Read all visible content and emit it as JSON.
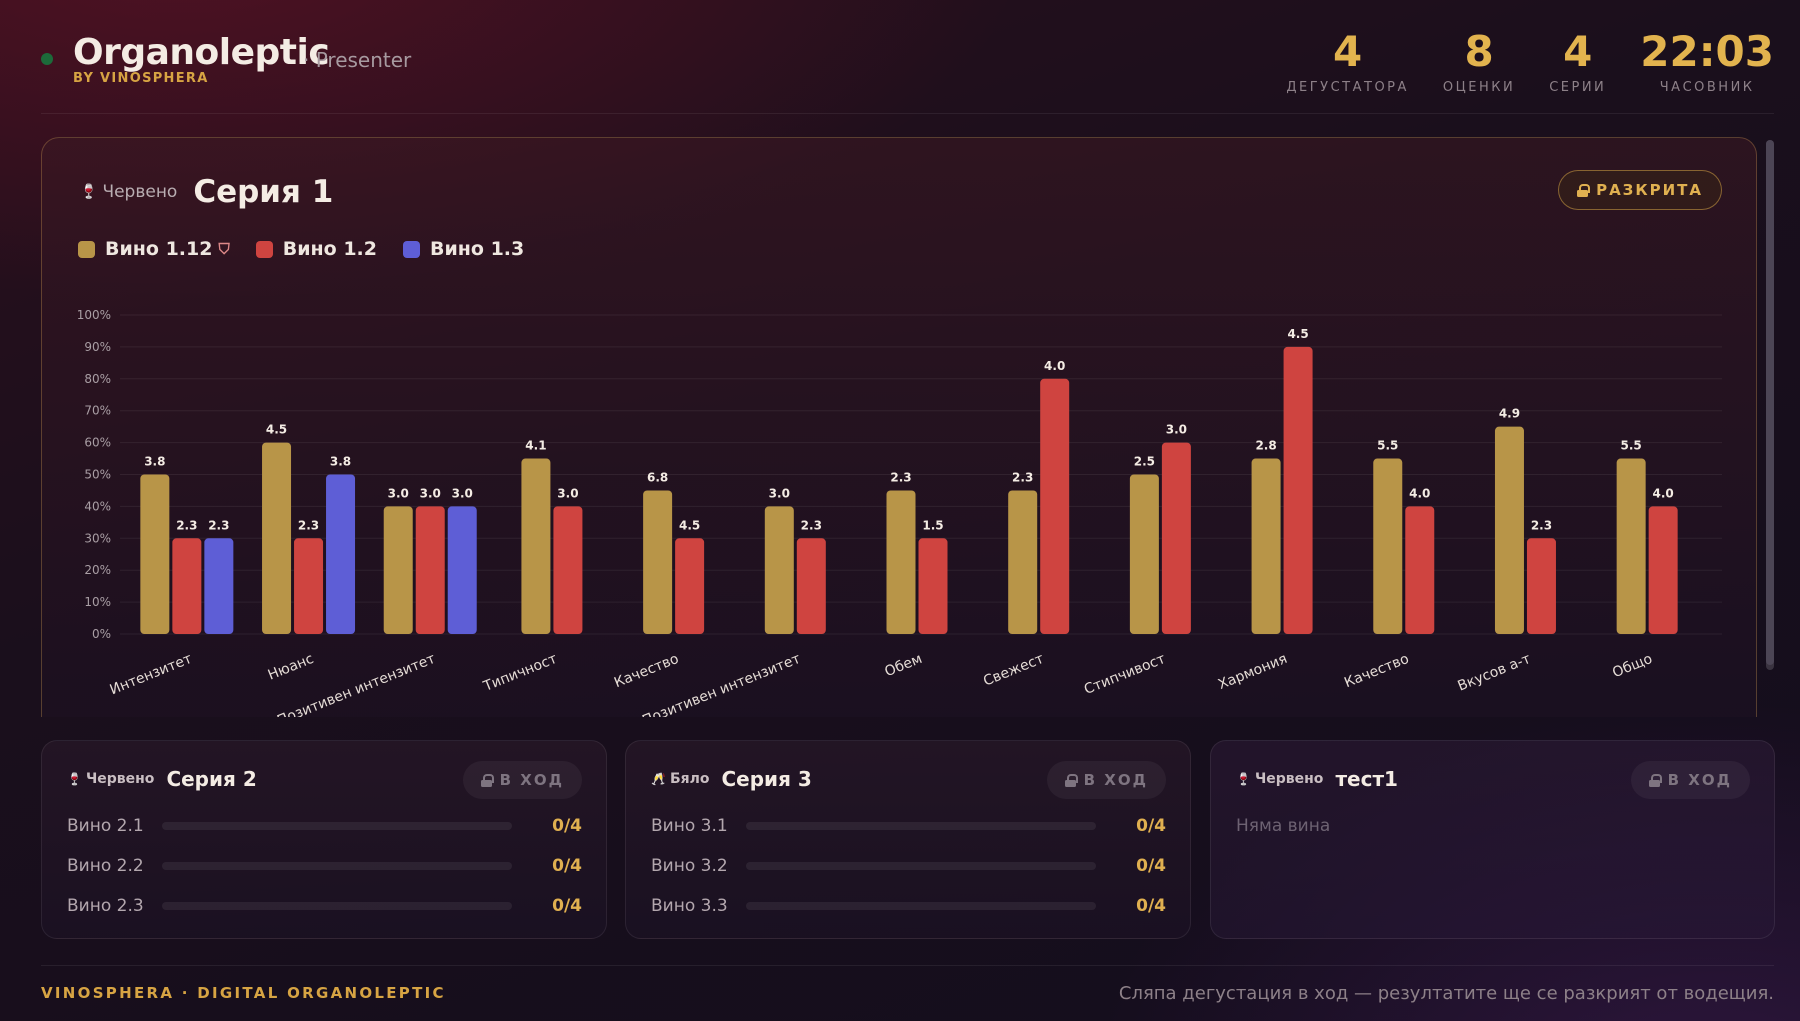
{
  "header": {
    "brand_name": "Organoleptic",
    "brand_sub": "BY VINOSPHERA",
    "role": "· Presenter",
    "stats": [
      {
        "value": "4",
        "label": "ДЕГУСТАТОРА"
      },
      {
        "value": "8",
        "label": "ОЦЕНКИ"
      },
      {
        "value": "4",
        "label": "СЕРИИ"
      },
      {
        "value": "22:03",
        "label": "ЧАСОВНИК"
      }
    ]
  },
  "main_series": {
    "type_label": "Червено",
    "title": "Серия 1",
    "status_button": "РАЗКРИТА",
    "legend": [
      {
        "name": "Вино 1.12",
        "color": "#b89548",
        "icon": "shield-icon"
      },
      {
        "name": "Вино 1.2",
        "color": "#cf4440"
      },
      {
        "name": "Вино 1.3",
        "color": "#5e5ed6"
      }
    ]
  },
  "chart_data": {
    "type": "bar",
    "categories": [
      "Интензитет",
      "Нюанс",
      "Позитивен интензитет",
      "Типичност",
      "Качество",
      "Позитивен интензитет",
      "Обем",
      "Свежест",
      "Стипчивост",
      "Хармония",
      "Качество",
      "Вкусов а-т",
      "Общо"
    ],
    "y_ticks": [
      "0%",
      "10%",
      "20%",
      "30%",
      "40%",
      "50%",
      "60%",
      "70%",
      "80%",
      "90%",
      "100%"
    ],
    "ylim": [
      0,
      100
    ],
    "grid": true,
    "series": [
      {
        "name": "Вино 1.12",
        "color": "#b89548",
        "values": [
          50,
          60,
          40,
          55,
          45,
          40,
          45,
          45,
          50,
          55,
          55,
          65,
          55
        ],
        "labels": [
          "3.8",
          "4.5",
          "3.0",
          "4.1",
          "6.8",
          "3.0",
          "2.3",
          "2.3",
          "2.5",
          "2.8",
          "5.5",
          "4.9",
          "5.5"
        ]
      },
      {
        "name": "Вино 1.2",
        "color": "#cf4440",
        "values": [
          30,
          30,
          40,
          40,
          30,
          30,
          30,
          80,
          60,
          90,
          40,
          30,
          40
        ],
        "labels": [
          "2.3",
          "2.3",
          "3.0",
          "3.0",
          "4.5",
          "2.3",
          "1.5",
          "4.0",
          "3.0",
          "4.5",
          "4.0",
          "2.3",
          "4.0"
        ]
      },
      {
        "name": "Вино 1.3",
        "color": "#5e5ed6",
        "values": [
          30,
          50,
          40,
          null,
          null,
          null,
          null,
          null,
          null,
          null,
          null,
          null,
          null
        ],
        "labels": [
          "2.3",
          "3.8",
          "3.0",
          null,
          null,
          null,
          null,
          null,
          null,
          null,
          null,
          null,
          null
        ]
      }
    ]
  },
  "series_cards": [
    {
      "type_label": "Червено",
      "type_icon": "red-wine-glass-icon",
      "title": "Серия 2",
      "status_button": "В ХОД",
      "wines": [
        {
          "name": "Вино 2.1",
          "score": "0/4",
          "progress": 0
        },
        {
          "name": "Вино 2.2",
          "score": "0/4",
          "progress": 0
        },
        {
          "name": "Вино 2.3",
          "score": "0/4",
          "progress": 0
        }
      ]
    },
    {
      "type_label": "Бяло",
      "type_icon": "white-wine-glass-icon",
      "title": "Серия 3",
      "status_button": "В ХОД",
      "wines": [
        {
          "name": "Вино 3.1",
          "score": "0/4",
          "progress": 0
        },
        {
          "name": "Вино 3.2",
          "score": "0/4",
          "progress": 0
        },
        {
          "name": "Вино 3.3",
          "score": "0/4",
          "progress": 0
        }
      ]
    },
    {
      "type_label": "Червено",
      "type_icon": "red-wine-glass-icon",
      "title": "тест1",
      "status_button": "В ХОД",
      "empty_note": "Няма вина"
    }
  ],
  "footer": {
    "left": "VINOSPHERA · DIGITAL ORGANOLEPTIC",
    "right": "Сляпа дегустация в ход — резултатите ще се разкрият от водещия."
  }
}
